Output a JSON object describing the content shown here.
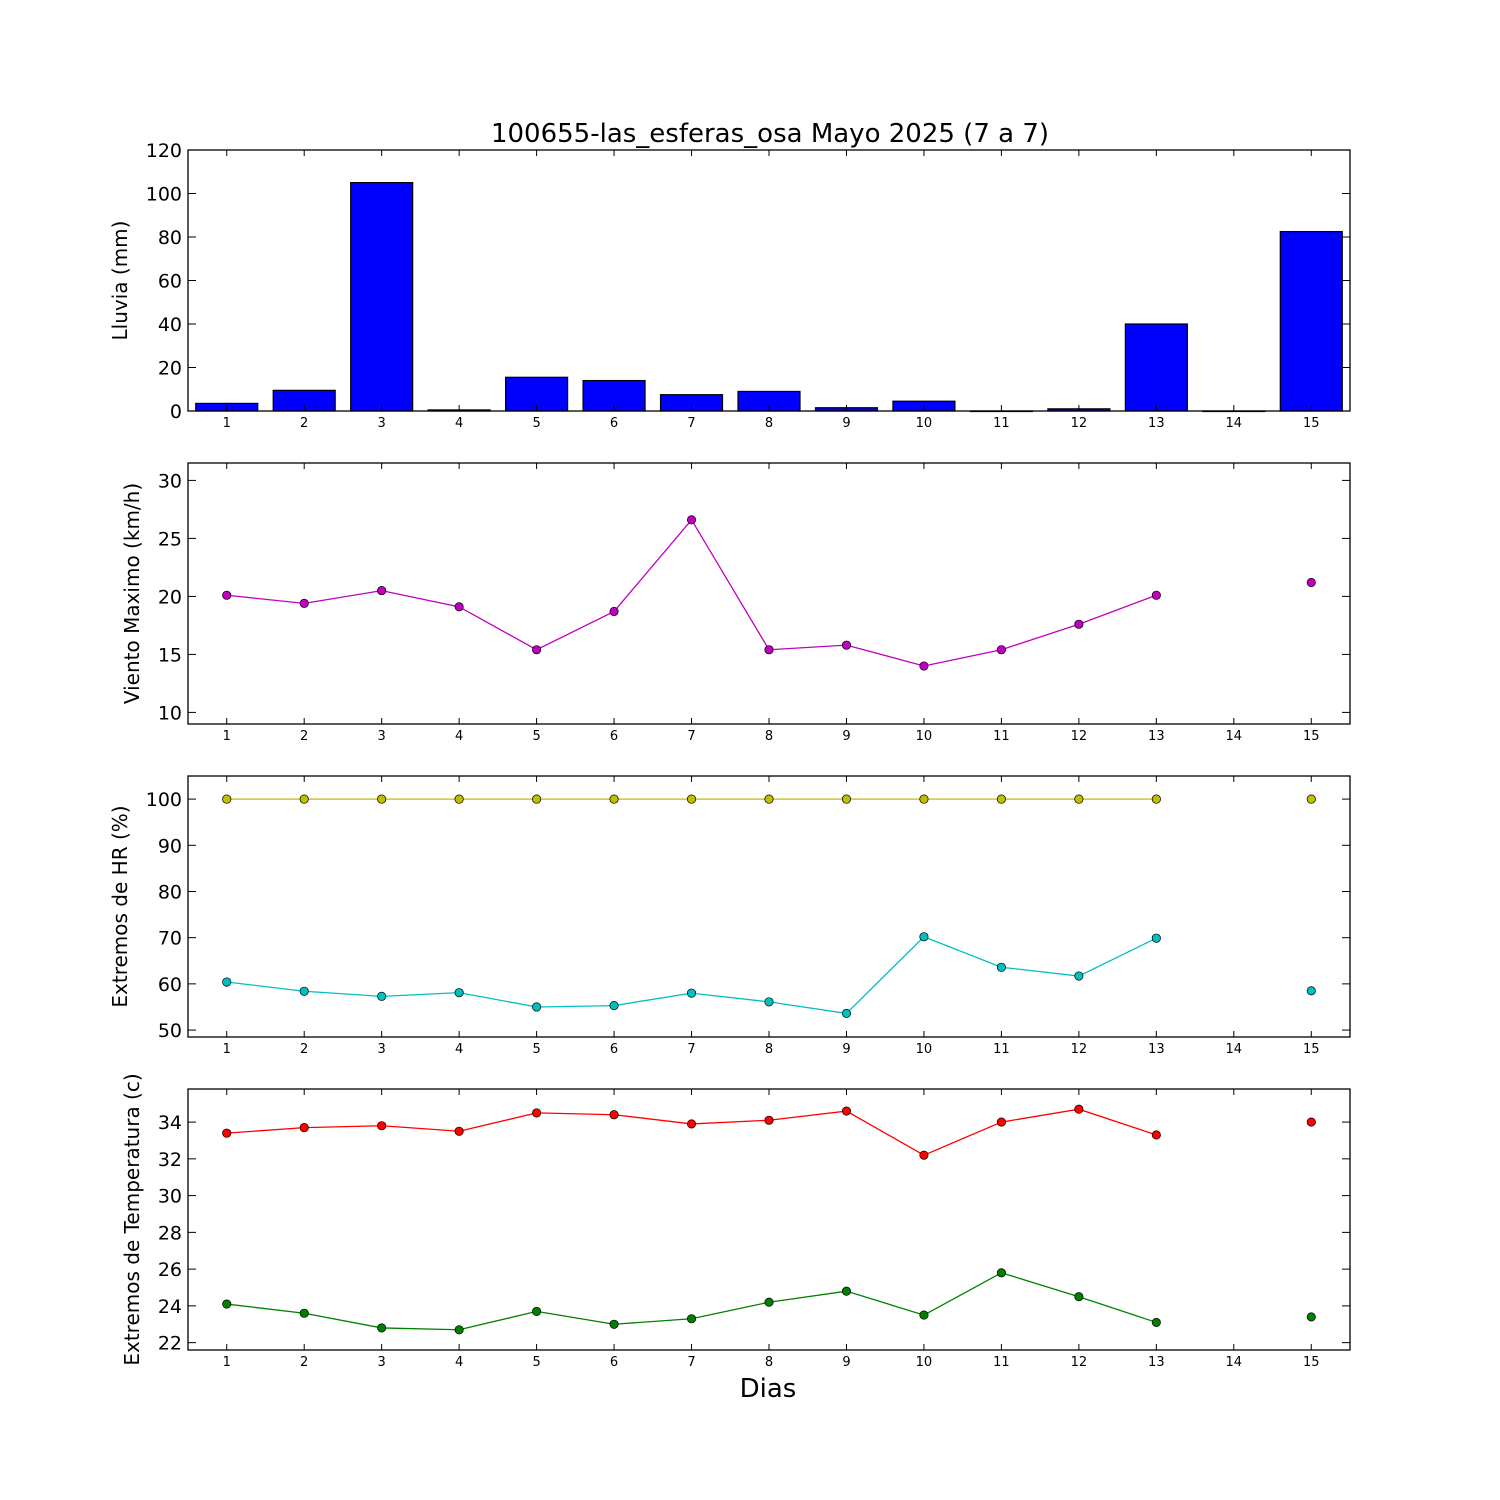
{
  "title": "100655-las_esferas_osa Mayo 2025  (7 a 7)",
  "xlabel": "Dias",
  "chart_data": [
    {
      "type": "bar",
      "ylabel": "Lluvia (mm)",
      "xlim": [
        0.5,
        15.5
      ],
      "ylim": [
        0,
        120
      ],
      "yticks": [
        0,
        20,
        40,
        60,
        80,
        100,
        120
      ],
      "categories": [
        "1",
        "2",
        "3",
        "4",
        "5",
        "6",
        "7",
        "8",
        "9",
        "10",
        "11",
        "12",
        "13",
        "14",
        "15"
      ],
      "series": [
        {
          "color": "#0000ff",
          "values": [
            3.5,
            9.5,
            105,
            0.5,
            15.5,
            14,
            7.5,
            9,
            1.5,
            4.5,
            0,
            1,
            40,
            0,
            82.5
          ]
        }
      ],
      "grid": false
    },
    {
      "type": "line",
      "ylabel": "Viento Maximo (km/h)",
      "xlim": [
        0.5,
        15.5
      ],
      "ylim": [
        9,
        31.5
      ],
      "yticks": [
        10,
        15,
        20,
        25,
        30
      ],
      "x": [
        1,
        2,
        3,
        4,
        5,
        6,
        7,
        8,
        9,
        10,
        11,
        12,
        13,
        14,
        15
      ],
      "series": [
        {
          "color": "#bf00bf",
          "values": [
            20.1,
            19.4,
            20.5,
            19.1,
            15.4,
            18.7,
            26.6,
            15.4,
            15.8,
            14.0,
            15.4,
            17.6,
            20.1,
            null,
            21.2
          ]
        }
      ],
      "grid": false
    },
    {
      "type": "line",
      "ylabel": "Extremos de HR (%)",
      "xlim": [
        0.5,
        15.5
      ],
      "ylim": [
        48.5,
        105
      ],
      "yticks": [
        50,
        60,
        70,
        80,
        90,
        100
      ],
      "x": [
        1,
        2,
        3,
        4,
        5,
        6,
        7,
        8,
        9,
        10,
        11,
        12,
        13,
        14,
        15
      ],
      "series": [
        {
          "color": "#bfbf00",
          "values": [
            100,
            100,
            100,
            100,
            100,
            100,
            100,
            100,
            100,
            100,
            100,
            100,
            100,
            null,
            100
          ]
        },
        {
          "color": "#00bfbf",
          "values": [
            60.4,
            58.4,
            57.3,
            58.1,
            55.0,
            55.3,
            58.0,
            56.1,
            53.6,
            70.2,
            63.6,
            61.7,
            69.9,
            null,
            58.5
          ]
        }
      ],
      "grid": false
    },
    {
      "type": "line",
      "ylabel": "Extremos de Temperatura (c)",
      "xlim": [
        0.5,
        15.5
      ],
      "ylim": [
        21.6,
        35.8
      ],
      "yticks": [
        22,
        24,
        26,
        28,
        30,
        32,
        34
      ],
      "x": [
        1,
        2,
        3,
        4,
        5,
        6,
        7,
        8,
        9,
        10,
        11,
        12,
        13,
        14,
        15
      ],
      "series": [
        {
          "color": "#ff0000",
          "values": [
            33.4,
            33.7,
            33.8,
            33.5,
            34.5,
            34.4,
            33.9,
            34.1,
            34.6,
            32.2,
            34.0,
            34.7,
            33.3,
            null,
            34.0
          ]
        },
        {
          "color": "#008000",
          "values": [
            24.1,
            23.6,
            22.8,
            22.7,
            23.7,
            23.0,
            23.3,
            24.2,
            24.8,
            23.5,
            25.8,
            24.5,
            23.1,
            null,
            23.4
          ]
        }
      ],
      "grid": false
    }
  ]
}
